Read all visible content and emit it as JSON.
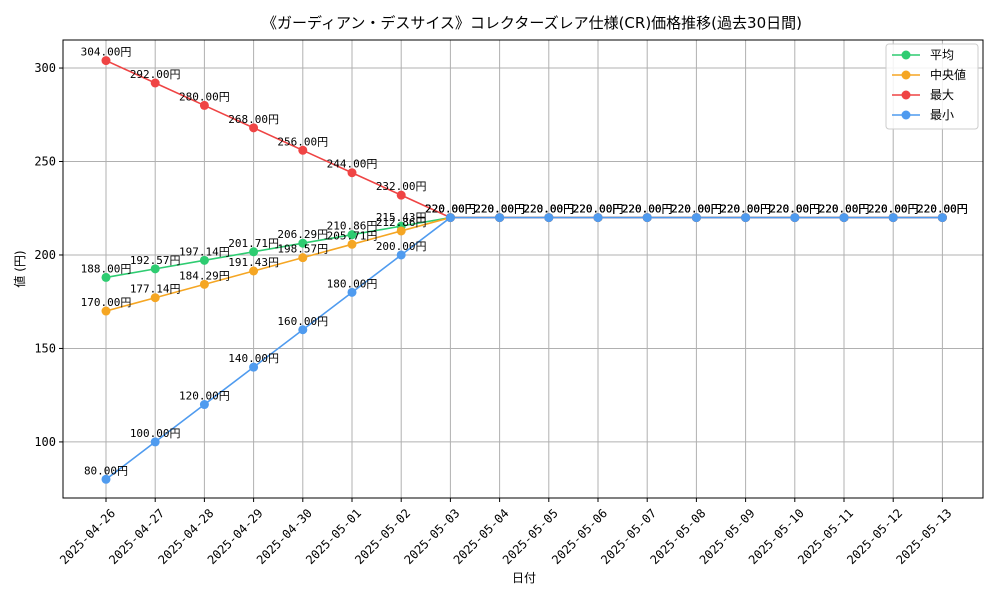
{
  "chart_data": {
    "type": "line",
    "title": "《ガーディアン・デスサイス》コレクターズレア仕様(CR)価格推移(過去30日間)",
    "xlabel": "日付",
    "ylabel": "値 (円)",
    "categories": [
      "2025-04-26",
      "2025-04-27",
      "2025-04-28",
      "2025-04-29",
      "2025-04-30",
      "2025-05-01",
      "2025-05-02",
      "2025-05-03",
      "2025-05-04",
      "2025-05-05",
      "2025-05-06",
      "2025-05-07",
      "2025-05-08",
      "2025-05-09",
      "2025-05-10",
      "2025-05-11",
      "2025-05-12",
      "2025-05-13"
    ],
    "ylim": [
      70,
      315
    ],
    "yticks": [
      100,
      150,
      200,
      250,
      300
    ],
    "grid": true,
    "legend_position": "top-right",
    "series": [
      {
        "name": "平均",
        "color": "#2ecc71",
        "values": [
          188.0,
          192.57,
          197.14,
          201.71,
          206.29,
          210.86,
          215.43,
          220,
          220,
          220,
          220,
          220,
          220,
          220,
          220,
          220,
          220,
          220
        ],
        "labels": [
          "188.00円",
          "192.57円",
          "197.14円",
          "201.71円",
          "206.29円",
          "210.86円",
          "215.43円",
          "220.00円",
          "220.00円",
          "220.00円",
          "220.00円",
          "220.00円",
          "220.00円",
          "220.00円",
          "220.00円",
          "220.00円",
          "220.00円",
          "220.00円"
        ]
      },
      {
        "name": "中央値",
        "color": "#f5a623",
        "values": [
          170.0,
          177.14,
          184.29,
          191.43,
          198.57,
          205.71,
          212.86,
          220,
          220,
          220,
          220,
          220,
          220,
          220,
          220,
          220,
          220,
          220
        ],
        "labels": [
          "170.00円",
          "177.14円",
          "184.29円",
          "191.43円",
          "198.57円",
          "205.71円",
          "212.86円",
          "220.00円",
          "220.00円",
          "220.00円",
          "220.00円",
          "220.00円",
          "220.00円",
          "220.00円",
          "220.00円",
          "220.00円",
          "220.00円",
          "220.00円"
        ]
      },
      {
        "name": "最大",
        "color": "#ef4444",
        "values": [
          304,
          292,
          280,
          268,
          256,
          244,
          232,
          220,
          220,
          220,
          220,
          220,
          220,
          220,
          220,
          220,
          220,
          220
        ],
        "labels": [
          "304.00円",
          "292.00円",
          "280.00円",
          "268.00円",
          "256.00円",
          "244.00円",
          "232.00円",
          "220.00円",
          "220.00円",
          "220.00円",
          "220.00円",
          "220.00円",
          "220.00円",
          "220.00円",
          "220.00円",
          "220.00円",
          "220.00円",
          "220.00円"
        ]
      },
      {
        "name": "最小",
        "color": "#4f9bef",
        "values": [
          80,
          100,
          120,
          140,
          160,
          180,
          200,
          220,
          220,
          220,
          220,
          220,
          220,
          220,
          220,
          220,
          220,
          220
        ],
        "labels": [
          "80.00円",
          "100.00円",
          "120.00円",
          "140.00円",
          "160.00円",
          "180.00円",
          "200.00円",
          "220.00円",
          "220.00円",
          "220.00円",
          "220.00円",
          "220.00円",
          "220.00円",
          "220.00円",
          "220.00円",
          "220.00円",
          "220.00円",
          "220.00円"
        ]
      }
    ]
  }
}
